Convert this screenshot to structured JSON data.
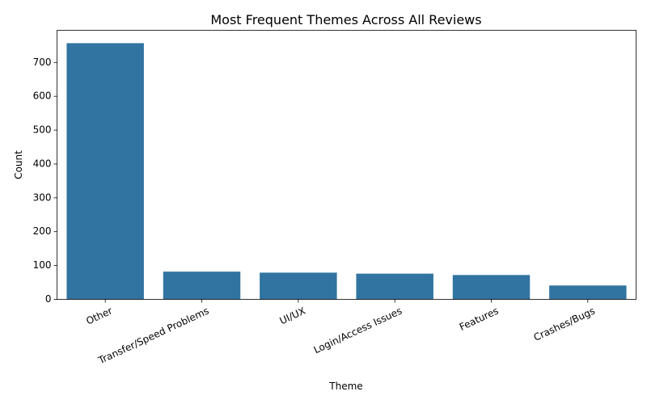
{
  "chart_data": {
    "type": "bar",
    "title": "Most Frequent Themes Across All Reviews",
    "xlabel": "Theme",
    "ylabel": "Count",
    "categories": [
      "Other",
      "Transfer/Speed Problems",
      "UI/UX",
      "Login/Access Issues",
      "Features",
      "Crashes/Bugs"
    ],
    "values": [
      757,
      82,
      79,
      76,
      72,
      41
    ],
    "ylim": [
      0,
      795
    ],
    "yticks": [
      0,
      100,
      200,
      300,
      400,
      500,
      600,
      700
    ],
    "grid": false,
    "x_tick_rotation_deg": 25,
    "bar_color": "#3274a1"
  }
}
